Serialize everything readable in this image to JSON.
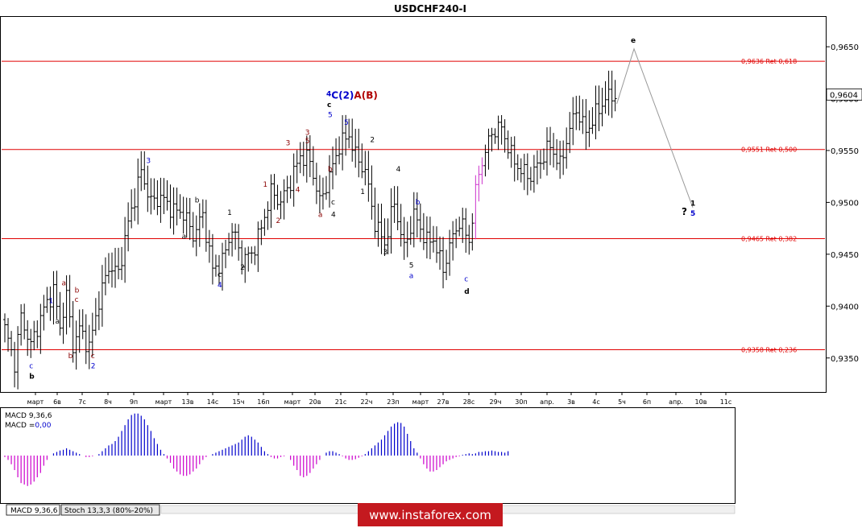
{
  "chart_data": {
    "type": "ohlc",
    "title": "USDCHF240-I",
    "y_range": [
      0.9318,
      0.9678
    ],
    "y_ticks": [
      "0,9350",
      "0,9400",
      "0,9450",
      "0,9500",
      "0,9550",
      "0,9600",
      "0,9650"
    ],
    "y_tick_values": [
      0.935,
      0.94,
      0.945,
      0.95,
      0.955,
      0.96,
      0.965
    ],
    "current_price": {
      "label": "0,9604",
      "value": 0.9604
    },
    "x_labels": [
      "март",
      "6в",
      "7с",
      "8ч",
      "9п",
      "март",
      "13в",
      "14с",
      "15ч",
      "16п",
      "март",
      "20в",
      "21с",
      "22ч",
      "23п",
      "март",
      "27в",
      "28с",
      "29ч",
      "30п",
      "апр.",
      "3в",
      "4с",
      "5ч",
      "6п",
      "апр.",
      "10в",
      "11с"
    ],
    "bar_count": 189,
    "fib_levels": [
      {
        "value": 0.9636,
        "label": "0,9636 Ret 0,618"
      },
      {
        "value": 0.9551,
        "label": "0,9551 Ret 0,500"
      },
      {
        "value": 0.9465,
        "label": "0,9465 Ret 0,382"
      },
      {
        "value": 0.9358,
        "label": "0,9358 Ret 0,236"
      }
    ],
    "anchors": [
      [
        0,
        0.9378
      ],
      [
        3,
        0.9345
      ],
      [
        5,
        0.939
      ],
      [
        8,
        0.9362
      ],
      [
        12,
        0.9397
      ],
      [
        15,
        0.9415
      ],
      [
        17,
        0.938
      ],
      [
        19,
        0.941
      ],
      [
        21,
        0.9362
      ],
      [
        23,
        0.9378
      ],
      [
        26,
        0.936
      ],
      [
        29,
        0.9405
      ],
      [
        32,
        0.9438
      ],
      [
        35,
        0.9432
      ],
      [
        38,
        0.948
      ],
      [
        42,
        0.953
      ],
      [
        45,
        0.95
      ],
      [
        48,
        0.9505
      ],
      [
        52,
        0.9492
      ],
      [
        55,
        0.949
      ],
      [
        58,
        0.9468
      ],
      [
        61,
        0.9488
      ],
      [
        64,
        0.9435
      ],
      [
        67,
        0.9443
      ],
      [
        70,
        0.9475
      ],
      [
        73,
        0.9445
      ],
      [
        76,
        0.945
      ],
      [
        79,
        0.9475
      ],
      [
        82,
        0.951
      ],
      [
        85,
        0.95
      ],
      [
        88,
        0.952
      ],
      [
        91,
        0.9545
      ],
      [
        94,
        0.954
      ],
      [
        97,
        0.95
      ],
      [
        100,
        0.9525
      ],
      [
        103,
        0.9555
      ],
      [
        106,
        0.9565
      ],
      [
        108,
        0.9545
      ],
      [
        111,
        0.953
      ],
      [
        114,
        0.948
      ],
      [
        117,
        0.946
      ],
      [
        120,
        0.95
      ],
      [
        123,
        0.9455
      ],
      [
        126,
        0.9488
      ],
      [
        130,
        0.9462
      ],
      [
        132,
        0.9465
      ],
      [
        135,
        0.9435
      ],
      [
        137,
        0.9458
      ],
      [
        140,
        0.9482
      ],
      [
        143,
        0.9463
      ],
      [
        146,
        0.953
      ],
      [
        148,
        0.9548
      ],
      [
        150,
        0.9568
      ],
      [
        153,
        0.9572
      ],
      [
        156,
        0.9545
      ],
      [
        159,
        0.953
      ],
      [
        162,
        0.9525
      ],
      [
        165,
        0.954
      ],
      [
        168,
        0.9555
      ],
      [
        171,
        0.9535
      ],
      [
        173,
        0.956
      ],
      [
        176,
        0.959
      ],
      [
        179,
        0.9568
      ],
      [
        182,
        0.9585
      ],
      [
        185,
        0.96
      ],
      [
        188,
        0.9604
      ]
    ],
    "projection": {
      "points": [
        [
          0.9595,
          0
        ],
        [
          0.9648,
          1
        ],
        [
          0.9495,
          2
        ]
      ],
      "labels": [
        "e",
        "? 1",
        "5"
      ]
    },
    "wave_labels": [
      {
        "t": "b",
        "bar": 8,
        "y": 0.933,
        "color": "#000000",
        "bold": true
      },
      {
        "t": "c",
        "bar": 8,
        "y": 0.934,
        "color": "#0000cc"
      },
      {
        "t": "a",
        "bar": 18,
        "y": 0.942,
        "color": "#8b0000"
      },
      {
        "t": "a",
        "bar": 16,
        "y": 0.9383,
        "color": "#000000"
      },
      {
        "t": "1",
        "bar": 14,
        "y": 0.9403,
        "color": "#0000cc"
      },
      {
        "t": "b",
        "bar": 20,
        "y": 0.935,
        "color": "#8b0000"
      },
      {
        "t": "b",
        "bar": 22,
        "y": 0.9413,
        "color": "#8b0000"
      },
      {
        "t": "c",
        "bar": 22,
        "y": 0.9404,
        "color": "#8b0000"
      },
      {
        "t": "c",
        "bar": 27,
        "y": 0.935,
        "color": "#8b0000"
      },
      {
        "t": "2",
        "bar": 27,
        "y": 0.934,
        "color": "#0000cc"
      },
      {
        "t": "3",
        "bar": 44,
        "y": 0.9538,
        "color": "#0000cc"
      },
      {
        "t": "a",
        "bar": 55,
        "y": 0.9465,
        "color": "#000000"
      },
      {
        "t": "b",
        "bar": 59,
        "y": 0.95,
        "color": "#000000"
      },
      {
        "t": "c",
        "bar": 66,
        "y": 0.9428,
        "color": "#000000"
      },
      {
        "t": "4",
        "bar": 66,
        "y": 0.9418,
        "color": "#0000cc"
      },
      {
        "t": "1",
        "bar": 69,
        "y": 0.9488,
        "color": "#000000"
      },
      {
        "t": "2",
        "bar": 73,
        "y": 0.9435,
        "color": "#000000"
      },
      {
        "t": "1",
        "bar": 80,
        "y": 0.9515,
        "color": "#8b0000"
      },
      {
        "t": "2",
        "bar": 84,
        "y": 0.948,
        "color": "#8b0000"
      },
      {
        "t": "3",
        "bar": 87,
        "y": 0.9555,
        "color": "#8b0000"
      },
      {
        "t": "4",
        "bar": 90,
        "y": 0.951,
        "color": "#8b0000"
      },
      {
        "t": "3",
        "bar": 93,
        "y": 0.9565,
        "color": "#8b0000"
      },
      {
        "t": "5",
        "bar": 93,
        "y": 0.9557,
        "color": "#8b0000"
      },
      {
        "t": "a",
        "bar": 97,
        "y": 0.9486,
        "color": "#8b0000"
      },
      {
        "t": "b",
        "bar": 100,
        "y": 0.953,
        "color": "#8b0000"
      },
      {
        "t": "c",
        "bar": 101,
        "y": 0.9498,
        "color": "#000000"
      },
      {
        "t": "4",
        "bar": 101,
        "y": 0.9486,
        "color": "#000000"
      },
      {
        "t": "5",
        "bar": 105,
        "y": 0.9575,
        "color": "#0000cc"
      },
      {
        "t": "1",
        "bar": 110,
        "y": 0.9508,
        "color": "#000000"
      },
      {
        "t": "2",
        "bar": 113,
        "y": 0.9558,
        "color": "#000000"
      },
      {
        "t": "4",
        "bar": 121,
        "y": 0.953,
        "color": "#000000"
      },
      {
        "t": "3",
        "bar": 117,
        "y": 0.945,
        "color": "#000000"
      },
      {
        "t": "b",
        "bar": 127,
        "y": 0.9498,
        "color": "#0000cc"
      },
      {
        "t": "5",
        "bar": 125,
        "y": 0.9437,
        "color": "#000000"
      },
      {
        "t": "a",
        "bar": 125,
        "y": 0.9427,
        "color": "#0000cc"
      },
      {
        "t": "c",
        "bar": 142,
        "y": 0.9424,
        "color": "#0000cc"
      },
      {
        "t": "d",
        "bar": 142,
        "y": 0.9412,
        "color": "#000000",
        "bold": true
      },
      {
        "t": "e",
        "bar": 203,
        "y": 0.9654,
        "color": "#000000",
        "bold": true
      }
    ],
    "peak_label": {
      "parts": [
        {
          "t": "4",
          "color": "#0000cc"
        },
        {
          "t": "C",
          "color": "#0000cc"
        },
        {
          "t": "(2)",
          "color": "#0000cc"
        },
        {
          "t": "A",
          "color": "#b00000"
        },
        {
          "t": "(B)",
          "color": "#b00000"
        }
      ],
      "sub": [
        "c",
        "5"
      ]
    },
    "macd": {
      "label_line1": "MACD 9,36,6",
      "label_line2_prefix": "MACD =",
      "label_line2_value": "0,00",
      "values": [
        -2,
        -6,
        -12,
        -20,
        -30,
        -38,
        -40,
        -42,
        -40,
        -36,
        -30,
        -24,
        -14,
        -6,
        0,
        3,
        5,
        7,
        8,
        10,
        8,
        6,
        4,
        2,
        0,
        -2,
        -2,
        -1,
        0,
        2,
        6,
        10,
        14,
        16,
        20,
        26,
        34,
        42,
        50,
        56,
        58,
        58,
        55,
        50,
        42,
        34,
        24,
        16,
        8,
        2,
        -4,
        -10,
        -18,
        -22,
        -26,
        -28,
        -28,
        -26,
        -22,
        -18,
        -12,
        -6,
        -2,
        0,
        2,
        4,
        6,
        8,
        10,
        12,
        14,
        16,
        18,
        22,
        26,
        28,
        26,
        22,
        18,
        12,
        6,
        2,
        -2,
        -4,
        -4,
        -2,
        -1,
        0,
        -6,
        -14,
        -20,
        -28,
        -30,
        -28,
        -24,
        -18,
        -12,
        -6,
        0,
        4,
        6,
        6,
        4,
        2,
        -1,
        -4,
        -6,
        -6,
        -5,
        -3,
        -1,
        2,
        6,
        10,
        14,
        18,
        22,
        28,
        34,
        40,
        44,
        46,
        45,
        40,
        30,
        20,
        10,
        4,
        -4,
        -12,
        -18,
        -22,
        -22,
        -20,
        -16,
        -12,
        -8,
        -6,
        -4,
        -2,
        -1,
        1,
        2,
        3,
        2,
        3,
        5,
        5,
        6,
        6,
        7,
        6,
        5,
        5,
        4,
        6
      ]
    }
  },
  "footer": {
    "tabs": [
      "MACD 9,36,6",
      "Stoch 13,3,3 (80%-20%)"
    ],
    "banner": "www.instaforex.com"
  }
}
